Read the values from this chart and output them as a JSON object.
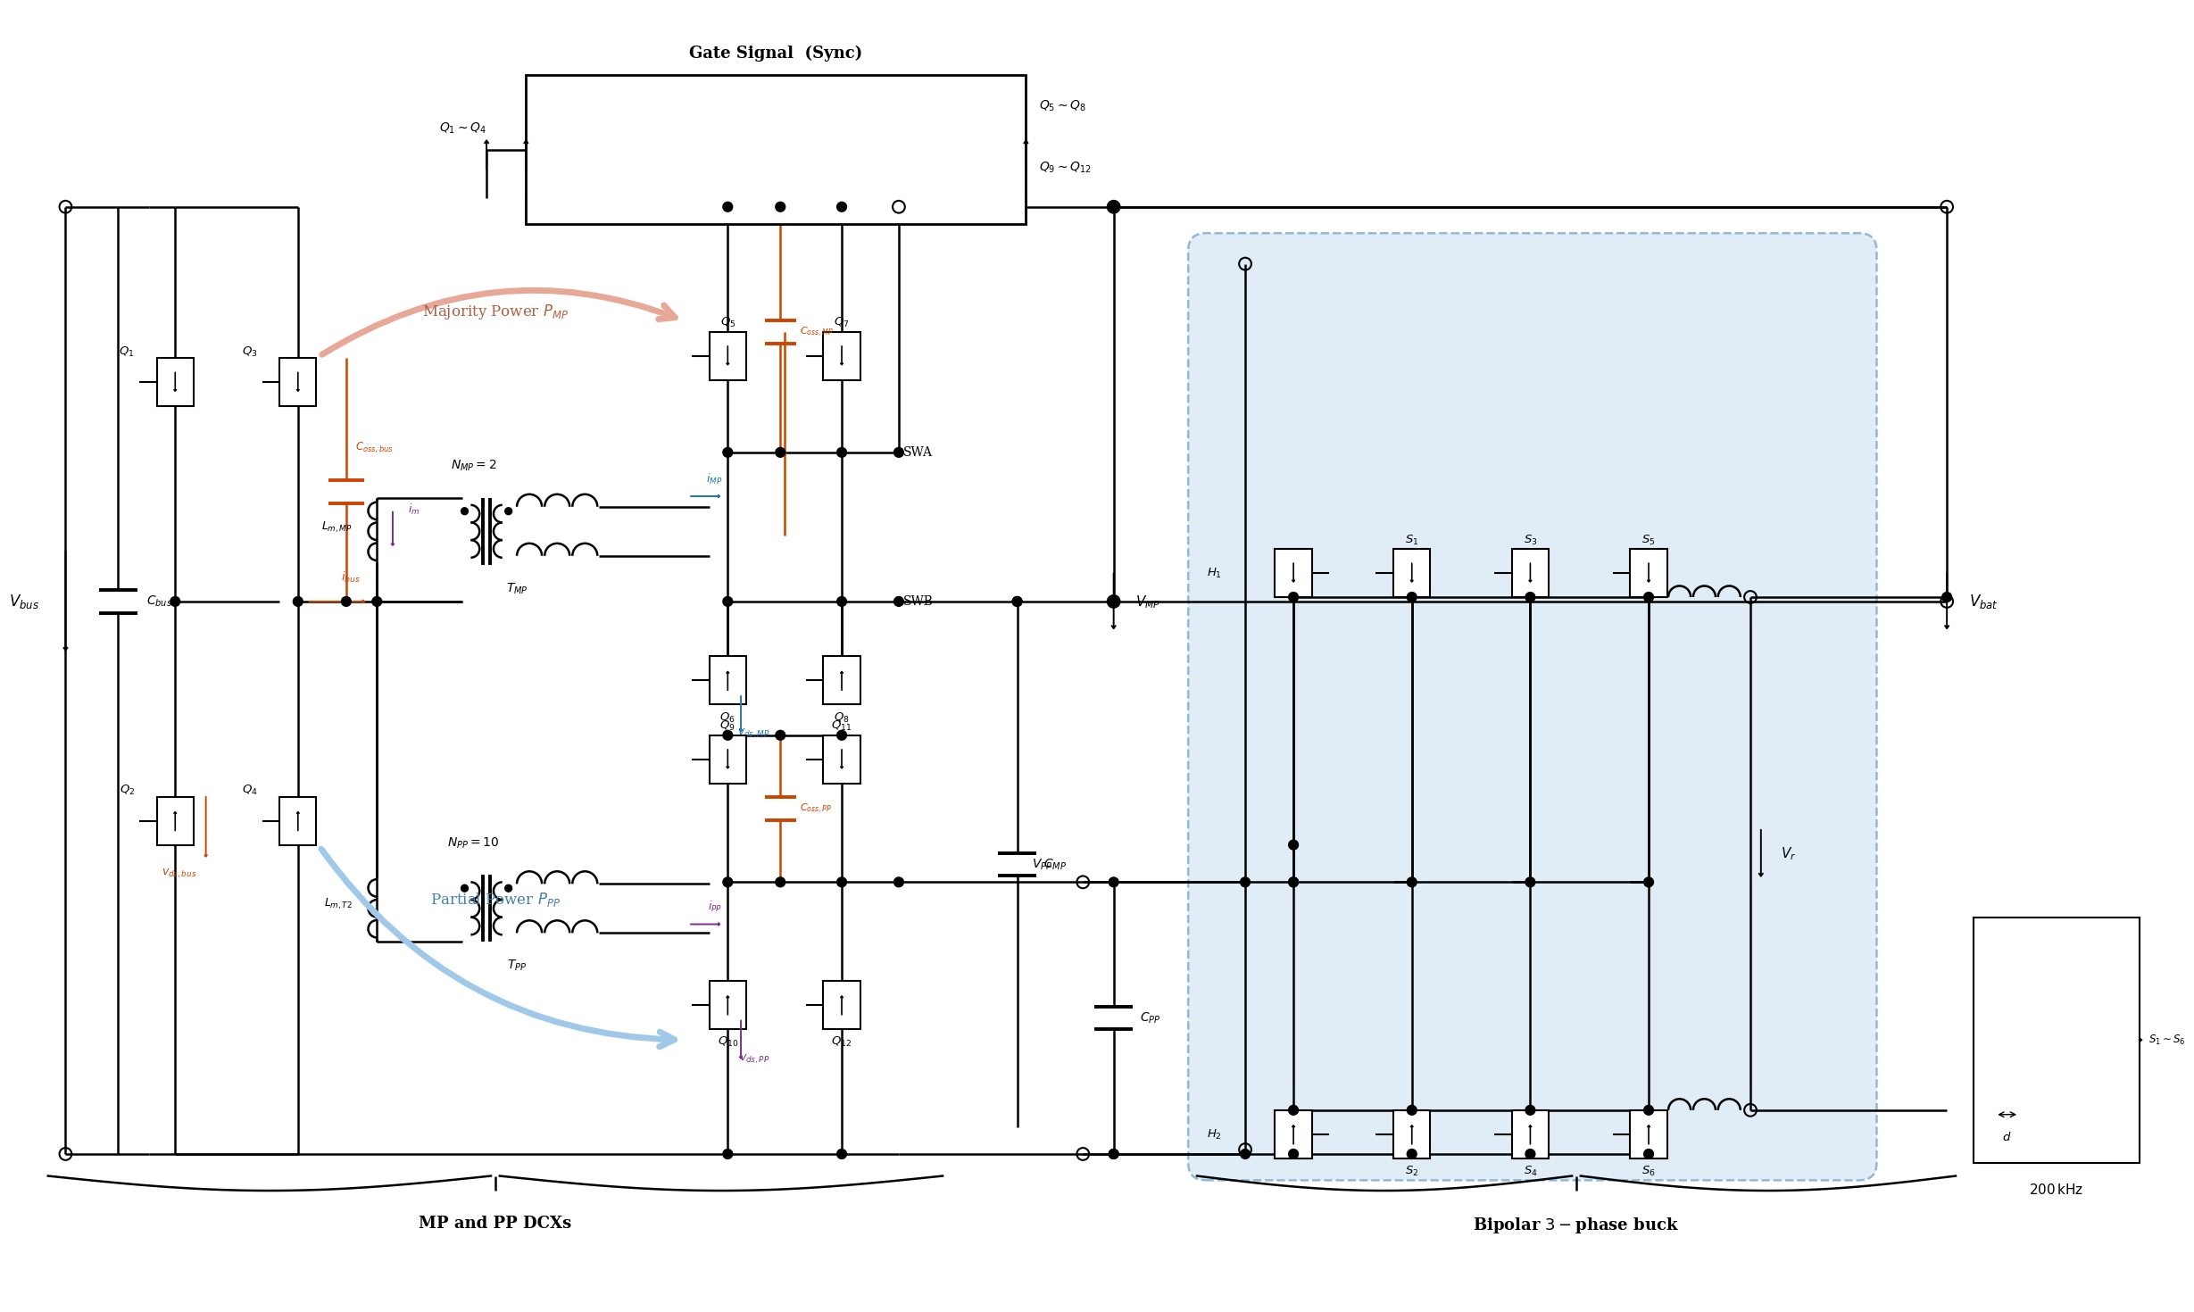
{
  "bg_color": "#ffffff",
  "line_color": "#000000",
  "orange_color": "#cc4400",
  "blue_color": "#1f77b4",
  "purple_color": "#7b2d8b",
  "green_color": "#2ca02c",
  "light_blue_fill": "#c8ddf0",
  "salmon_color": "#e8a898",
  "lblue_arrow": "#a0c8e8",
  "gate_signal_title": "Gate Signal  (Sync)",
  "label_Q1Q4": "$Q_1{\\sim}Q_4$",
  "label_Q5Q8": "$Q_5{\\sim}Q_8$",
  "label_Q9Q12": "$Q_9{\\sim}Q_{12}$",
  "label_Vbus": "$V_{bus}$",
  "label_Cbus": "$C_{bus}$",
  "label_Q1": "$Q_1$",
  "label_Q2": "$Q_2$",
  "label_Q3": "$Q_3$",
  "label_Q4": "$Q_4$",
  "label_Coss_bus": "$C_{oss,bus}$",
  "label_Lm_MP": "$L_{m,MP}$",
  "label_TMP": "$T_{MP}$",
  "label_im": "$i_m$",
  "label_ibus": "$i_{bus}$",
  "label_NMP": "$N_{MP}=2$",
  "label_NPP": "$N_{PP}=10$",
  "label_LmT2": "$L_{m,T2}$",
  "label_TPP": "$T_{PP}$",
  "label_Q5": "$Q_5$",
  "label_Q6": "$Q_6$",
  "label_Q7": "$Q_7$",
  "label_Q8": "$Q_8$",
  "label_Q9": "$Q_9$",
  "label_Q10": "$Q_{10}$",
  "label_Q11": "$Q_{11}$",
  "label_Q12": "$Q_{12}$",
  "label_Coss_MP": "$C_{oss,MP}$",
  "label_Coss_PP": "$C_{oss,PP}$",
  "label_iMP": "$i_{MP}$",
  "label_iPP": "$i_{PP}$",
  "label_vds_MP": "$v_{ds,MP}$",
  "label_vds_PP": "$v_{ds,PP}$",
  "label_vds_bus": "$v_{ds,bus}$",
  "label_SWA": "SWA",
  "label_SWB": "SWB",
  "label_CMP": "$C_{MP}$",
  "label_VMP": "$V_{MP}$",
  "label_VPP": "$V_{PP}$",
  "label_CPP": "$C_{PP}$",
  "label_Vbat": "$V_{bat}$",
  "label_Vr": "$V_r$",
  "label_H1": "$H_1$",
  "label_H2": "$H_2$",
  "label_S1": "$S_1$",
  "label_S2": "$S_2$",
  "label_S3": "$S_3$",
  "label_S4": "$S_4$",
  "label_S5": "$S_5$",
  "label_S6": "$S_6$",
  "label_S1S6": "$S_1{\\sim}S_6$",
  "label_d": "$d$",
  "label_maj_power": "Majority Power $P_{MP}$",
  "label_part_power": "Partial Power $P_{PP}$",
  "label_MP_PP": "MP and PP DCXs",
  "label_bipolar": "Bipolar $3-$phase buck"
}
